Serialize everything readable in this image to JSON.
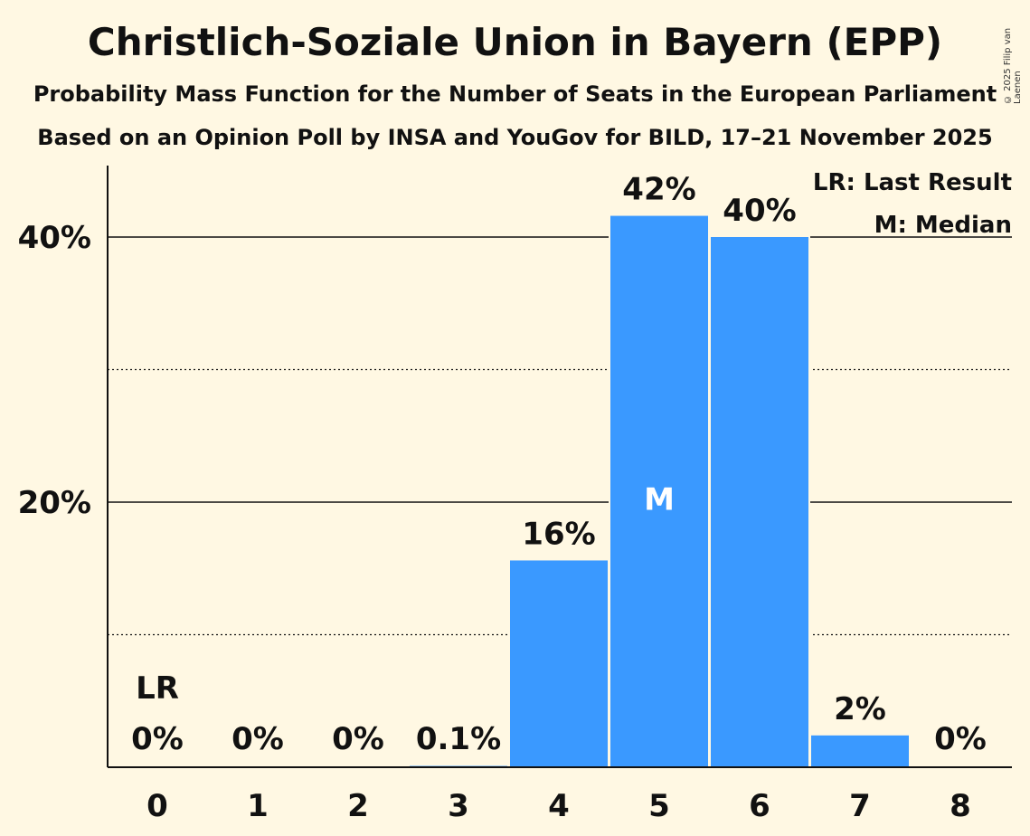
{
  "title": "Christlich-Soziale Union in Bayern (EPP)",
  "subtitle1": "Probability Mass Function for the Number of Seats in the European Parliament",
  "subtitle2": "Based on an Opinion Poll by INSA and YouGov for BILD, 17–21 November 2025",
  "copyright": "© 2025 Filip van Laenen",
  "colors": {
    "background": "#FFF8E3",
    "bar": "#3A99FF",
    "text": "#111111"
  },
  "chart_data": {
    "type": "bar",
    "categories": [
      "0",
      "1",
      "2",
      "3",
      "4",
      "5",
      "6",
      "7",
      "8"
    ],
    "values": [
      0,
      0,
      0,
      0.1,
      15.6,
      41.6,
      40.0,
      2.4,
      0
    ],
    "data_labels": [
      "0%",
      "0%",
      "0%",
      "0.1%",
      "16%",
      "42%",
      "40%",
      "2%",
      "0%"
    ],
    "ylim": [
      0,
      45
    ],
    "y_ticks": [
      20,
      40
    ],
    "y_tick_labels": [
      "20%",
      "40%"
    ],
    "minor_gridlines": [
      10,
      30
    ],
    "last_result_index": 0,
    "last_result_label": "LR",
    "median_index": 5,
    "median_label": "M",
    "legend": [
      "LR: Last Result",
      "M: Median"
    ],
    "legend_position": "top-right",
    "xlabel": "",
    "ylabel": ""
  }
}
